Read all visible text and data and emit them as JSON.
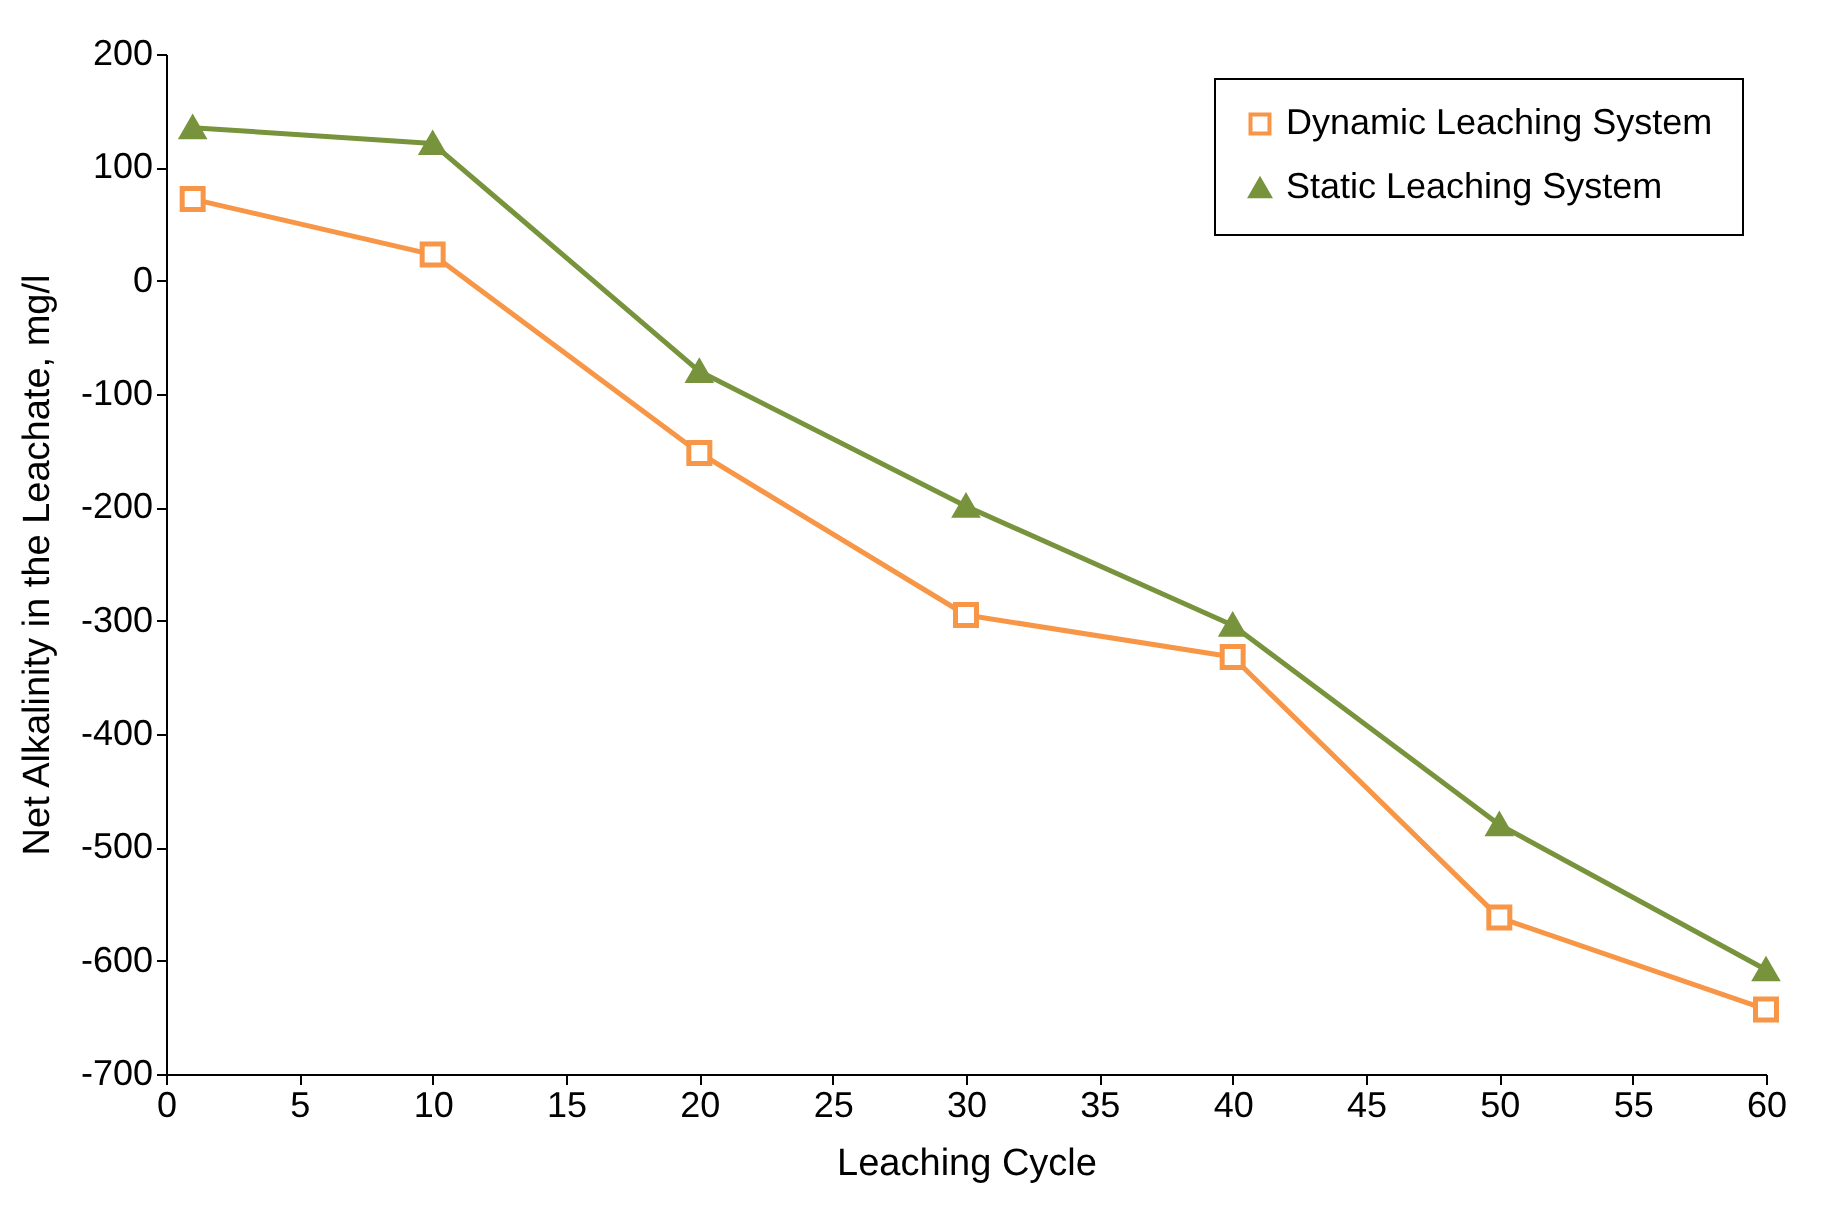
{
  "chart_data": {
    "type": "line",
    "xlabel": "Leaching Cycle",
    "ylabel": "Net Alkalinity in the Leachate, mg/l",
    "x": [
      1,
      10,
      20,
      30,
      40,
      50,
      60
    ],
    "series": [
      {
        "name": "Dynamic Leaching System",
        "color": "#f79646",
        "marker": "square",
        "values": [
          72,
          23,
          -152,
          -295,
          -332,
          -562,
          -643
        ]
      },
      {
        "name": "Static Leaching System",
        "color": "#77933c",
        "marker": "triangle",
        "values": [
          135,
          121,
          -80,
          -199,
          -304,
          -480,
          -608
        ]
      }
    ],
    "xlim": [
      0,
      60
    ],
    "xticks": [
      0,
      5,
      10,
      15,
      20,
      25,
      30,
      35,
      40,
      45,
      50,
      55,
      60
    ],
    "ylim": [
      -700,
      200
    ],
    "yticks": [
      -700,
      -600,
      -500,
      -400,
      -300,
      -200,
      -100,
      0,
      100,
      200
    ],
    "grid": false,
    "legend": "top right",
    "line_style": "solid"
  }
}
